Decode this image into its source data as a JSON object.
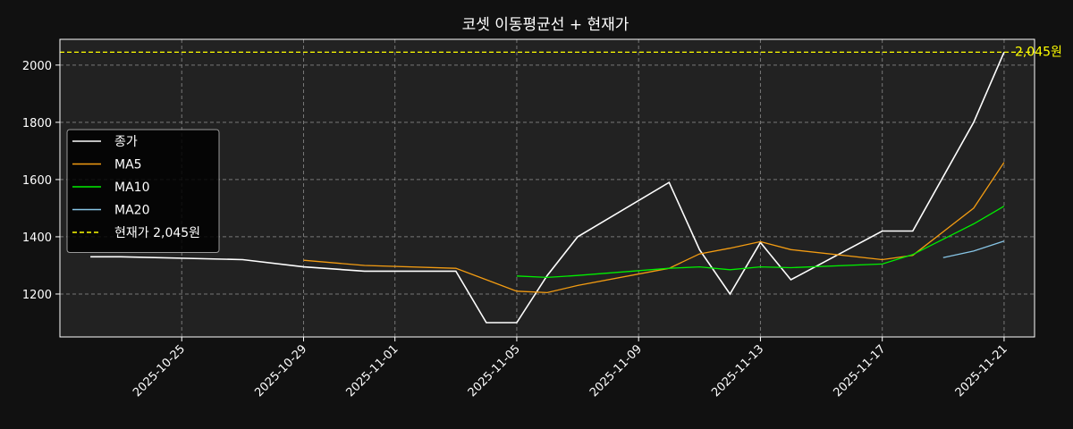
{
  "chart_data": {
    "type": "line",
    "title": "코셋 이동평균선 + 현재가",
    "xlabel": "",
    "ylabel": "",
    "x_range": [
      "2025-10-21",
      "2025-11-22"
    ],
    "ylim": [
      1050,
      2090
    ],
    "x_ticks": [
      "2025-10-25",
      "2025-10-29",
      "2025-11-01",
      "2025-11-05",
      "2025-11-09",
      "2025-11-13",
      "2025-11-17",
      "2025-11-21"
    ],
    "y_ticks": [
      1200,
      1400,
      1600,
      1800,
      2000
    ],
    "grid": true,
    "legend_position": "center-left",
    "background": "#111111",
    "plot_background": "#222222",
    "series": [
      {
        "name": "종가",
        "color": "#ffffff",
        "style": "solid",
        "points": [
          [
            "2025-10-22",
            1330
          ],
          [
            "2025-10-23",
            1330
          ],
          [
            "2025-10-27",
            1320
          ],
          [
            "2025-10-29",
            1295
          ],
          [
            "2025-10-31",
            1280
          ],
          [
            "2025-11-03",
            1280
          ],
          [
            "2025-11-04",
            1100
          ],
          [
            "2025-11-05",
            1100
          ],
          [
            "2025-11-06",
            1265
          ],
          [
            "2025-11-07",
            1400
          ],
          [
            "2025-11-10",
            1590
          ],
          [
            "2025-11-11",
            1355
          ],
          [
            "2025-11-12",
            1200
          ],
          [
            "2025-11-13",
            1380
          ],
          [
            "2025-11-14",
            1250
          ],
          [
            "2025-11-17",
            1420
          ],
          [
            "2025-11-18",
            1420
          ],
          [
            "2025-11-20",
            1800
          ],
          [
            "2025-11-21",
            2045
          ]
        ]
      },
      {
        "name": "MA5",
        "color": "#f39c12",
        "style": "solid",
        "points": [
          [
            "2025-10-29",
            1318
          ],
          [
            "2025-10-31",
            1300
          ],
          [
            "2025-11-03",
            1290
          ],
          [
            "2025-11-04",
            1250
          ],
          [
            "2025-11-05",
            1210
          ],
          [
            "2025-11-06",
            1205
          ],
          [
            "2025-11-07",
            1230
          ],
          [
            "2025-11-10",
            1290
          ],
          [
            "2025-11-11",
            1340
          ],
          [
            "2025-11-12",
            1360
          ],
          [
            "2025-11-13",
            1383
          ],
          [
            "2025-11-14",
            1355
          ],
          [
            "2025-11-17",
            1320
          ],
          [
            "2025-11-18",
            1335
          ],
          [
            "2025-11-20",
            1500
          ],
          [
            "2025-11-21",
            1660
          ]
        ]
      },
      {
        "name": "MA10",
        "color": "#00ee00",
        "style": "solid",
        "points": [
          [
            "2025-11-05",
            1263
          ],
          [
            "2025-11-06",
            1258
          ],
          [
            "2025-11-07",
            1265
          ],
          [
            "2025-11-10",
            1290
          ],
          [
            "2025-11-11",
            1295
          ],
          [
            "2025-11-12",
            1285
          ],
          [
            "2025-11-13",
            1295
          ],
          [
            "2025-11-14",
            1292
          ],
          [
            "2025-11-17",
            1305
          ],
          [
            "2025-11-18",
            1338
          ],
          [
            "2025-11-20",
            1445
          ],
          [
            "2025-11-21",
            1507
          ]
        ]
      },
      {
        "name": "MA20",
        "color": "#87c5e6",
        "style": "solid",
        "points": [
          [
            "2025-11-19",
            1327
          ],
          [
            "2025-11-20",
            1350
          ],
          [
            "2025-11-21",
            1385
          ]
        ]
      }
    ],
    "reference_line": {
      "name": "현재가 2,045원",
      "value": 2045,
      "label": "2,045원",
      "color": "#ffff00",
      "style": "dashed"
    }
  }
}
